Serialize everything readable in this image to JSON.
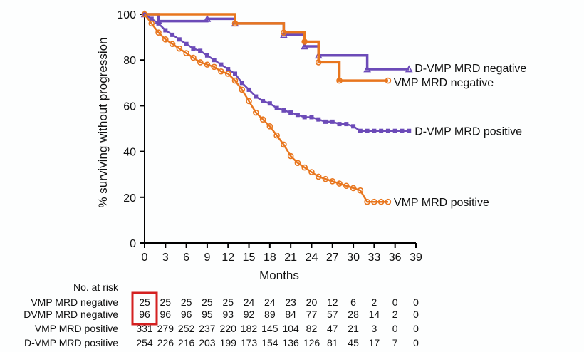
{
  "colors": {
    "vmp": "#e8761e",
    "dvmp": "#6c4bb8",
    "highlight": "#d42020",
    "axis": "#000000"
  },
  "chart_data": {
    "type": "line",
    "title": "",
    "xlabel": "Months",
    "ylabel": "% surviving without progression",
    "xlim": [
      0,
      39
    ],
    "ylim": [
      0,
      100
    ],
    "xticks": [
      0,
      3,
      6,
      9,
      12,
      15,
      18,
      21,
      24,
      27,
      30,
      33,
      36,
      39
    ],
    "yticks": [
      0,
      20,
      40,
      60,
      80,
      100
    ],
    "series": [
      {
        "name": "D-VMP MRD negative",
        "label": "D-VMP MRD negative",
        "color": "#6c4bb8",
        "marker": "triangle",
        "step": true,
        "x": [
          0,
          2,
          9,
          13,
          20,
          23,
          25,
          32,
          38
        ],
        "y": [
          100,
          97,
          98,
          96,
          91,
          86,
          82,
          76,
          76
        ]
      },
      {
        "name": "VMP MRD negative",
        "label": "VMP MRD negative",
        "color": "#e8761e",
        "marker": "circle",
        "step": true,
        "x": [
          0,
          13,
          20,
          23,
          25,
          28,
          35
        ],
        "y": [
          100,
          96,
          92,
          88,
          79,
          71,
          71
        ]
      },
      {
        "name": "D-VMP MRD positive",
        "label": "D-VMP MRD positive",
        "color": "#6c4bb8",
        "marker": "square",
        "step": false,
        "x": [
          0,
          1,
          2,
          3,
          4,
          5,
          6,
          7,
          8,
          9,
          10,
          11,
          12,
          13,
          14,
          15,
          16,
          17,
          18,
          19,
          20,
          21,
          22,
          23,
          24,
          25,
          26,
          27,
          28,
          29,
          30,
          31,
          32,
          33,
          34,
          35,
          36,
          37,
          38
        ],
        "y": [
          100,
          98,
          96,
          93,
          91,
          89,
          87,
          85,
          84,
          82,
          80,
          78,
          76,
          74,
          70,
          67,
          64,
          62,
          61,
          59,
          58,
          57,
          56,
          55,
          55,
          54,
          53,
          53,
          52,
          52,
          51,
          49,
          49,
          49,
          49,
          49,
          49,
          49,
          49
        ]
      },
      {
        "name": "VMP MRD positive",
        "label": "VMP MRD positive",
        "color": "#e8761e",
        "marker": "circle",
        "step": false,
        "x": [
          0,
          1,
          2,
          3,
          4,
          5,
          6,
          7,
          8,
          9,
          10,
          11,
          12,
          13,
          14,
          15,
          16,
          17,
          18,
          19,
          20,
          21,
          22,
          23,
          24,
          25,
          26,
          27,
          28,
          29,
          30,
          31,
          32,
          33,
          34,
          35
        ],
        "y": [
          100,
          96,
          92,
          89,
          87,
          85,
          83,
          81,
          79,
          78,
          77,
          75,
          74,
          71,
          67,
          62,
          57,
          54,
          51,
          47,
          43,
          38,
          35,
          33,
          31,
          29,
          28,
          27,
          26,
          25,
          24,
          23,
          18,
          18,
          18,
          18
        ]
      }
    ],
    "risk_table": {
      "title": "No. at risk",
      "rows": [
        {
          "label": "VMP MRD negative",
          "values": [
            "25",
            "25",
            "25",
            "25",
            "25",
            "24",
            "24",
            "23",
            "20",
            "12",
            "6",
            "2",
            "0",
            "0"
          ]
        },
        {
          "label": "DVMP MRD negative",
          "values": [
            "96",
            "96",
            "96",
            "95",
            "93",
            "92",
            "89",
            "84",
            "77",
            "57",
            "28",
            "14",
            "2",
            "0"
          ]
        },
        {
          "label": "VMP MRD positive",
          "values": [
            "331",
            "279",
            "252",
            "237",
            "220",
            "182",
            "145",
            "104",
            "82",
            "47",
            "21",
            "3",
            "0",
            "0"
          ]
        },
        {
          "label": "D-VMP MRD positive",
          "values": [
            "254",
            "226",
            "216",
            "203",
            "199",
            "173",
            "154",
            "136",
            "126",
            "81",
            "45",
            "17",
            "7",
            "0"
          ]
        }
      ],
      "highlighted_column": 0
    }
  }
}
